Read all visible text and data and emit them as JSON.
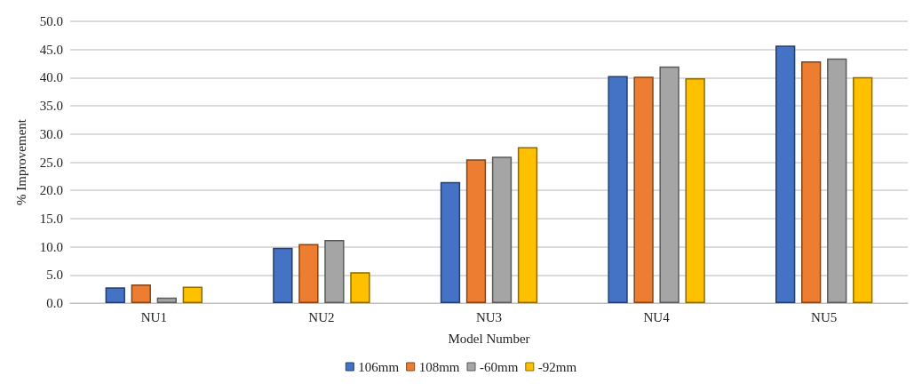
{
  "chart_data": {
    "type": "bar",
    "xlabel": "Model Number",
    "ylabel": "% Improvement",
    "categories": [
      "NU1",
      "NU2",
      "NU3",
      "NU4",
      "NU5"
    ],
    "series": [
      {
        "name": "106mm",
        "color": "#4472c4",
        "values": [
          2.8,
          9.8,
          21.5,
          40.3,
          45.7
        ]
      },
      {
        "name": "108mm",
        "color": "#ed7d31",
        "values": [
          3.3,
          10.5,
          25.5,
          40.2,
          42.9
        ]
      },
      {
        "name": "-60mm",
        "color": "#a5a5a5",
        "values": [
          1.0,
          11.2,
          26.0,
          42.0,
          43.4
        ]
      },
      {
        "name": "-92mm",
        "color": "#ffc000",
        "values": [
          2.9,
          5.5,
          27.7,
          39.9,
          40.1
        ]
      }
    ],
    "ylim": [
      0,
      50
    ],
    "yticks": [
      {
        "value": 0,
        "label": "0.0"
      },
      {
        "value": 5,
        "label": "5.0"
      },
      {
        "value": 10,
        "label": "10.0"
      },
      {
        "value": 15,
        "label": "15.0"
      },
      {
        "value": 20,
        "label": "20.0"
      },
      {
        "value": 25,
        "label": "25.0"
      },
      {
        "value": 30,
        "label": "30.0"
      },
      {
        "value": 35,
        "label": "35.0"
      },
      {
        "value": 40,
        "label": "40.0"
      },
      {
        "value": 45,
        "label": "45.0"
      },
      {
        "value": 50,
        "label": "50.0"
      }
    ],
    "grid": "y",
    "legend": "bottom"
  }
}
